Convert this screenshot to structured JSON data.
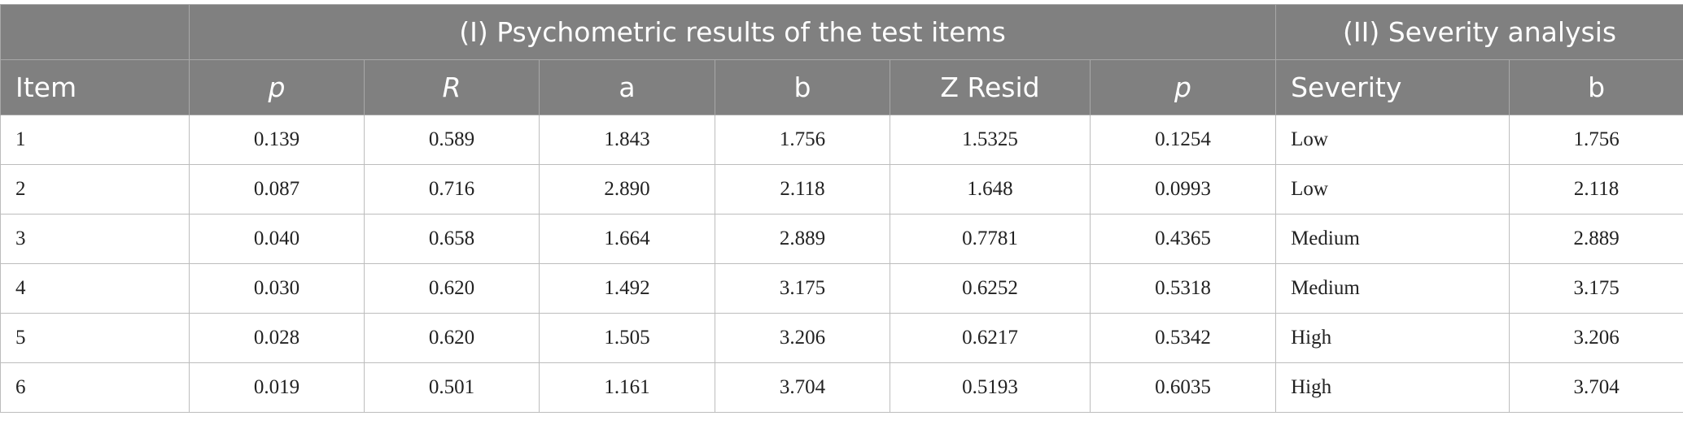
{
  "table": {
    "group_headers": [
      "(I) Psychometric results of the test items",
      "(II) Severity analysis"
    ],
    "columns": [
      "Item",
      "p",
      "R",
      "a",
      "b",
      "Z Resid",
      "p",
      "Severity",
      "b"
    ],
    "rows": [
      [
        "1",
        "0.139",
        "0.589",
        "1.843",
        "1.756",
        "1.5325",
        "0.1254",
        "Low",
        "1.756"
      ],
      [
        "2",
        "0.087",
        "0.716",
        "2.890",
        "2.118",
        "1.648",
        "0.0993",
        "Low",
        "2.118"
      ],
      [
        "3",
        "0.040",
        "0.658",
        "1.664",
        "2.889",
        "0.7781",
        "0.4365",
        "Medium",
        "2.889"
      ],
      [
        "4",
        "0.030",
        "0.620",
        "1.492",
        "3.175",
        "0.6252",
        "0.5318",
        "Medium",
        "3.175"
      ],
      [
        "5",
        "0.028",
        "0.620",
        "1.505",
        "3.206",
        "0.6217",
        "0.5342",
        "High",
        "3.206"
      ],
      [
        "6",
        "0.019",
        "0.501",
        "1.161",
        "3.704",
        "0.5193",
        "0.6035",
        "High",
        "3.704"
      ]
    ]
  }
}
